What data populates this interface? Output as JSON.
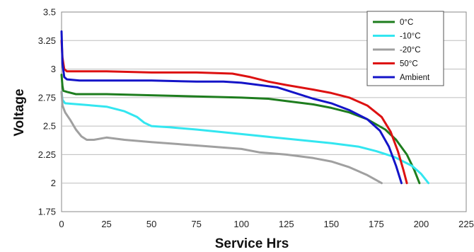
{
  "chart_data": {
    "type": "line",
    "title": "",
    "xlabel": "Service Hrs",
    "ylabel": "Voltage",
    "xlim": [
      0,
      225
    ],
    "ylim": [
      1.75,
      3.5
    ],
    "x_ticks": [
      0,
      25,
      50,
      75,
      100,
      125,
      150,
      175,
      200,
      225
    ],
    "y_ticks": [
      1.75,
      2,
      2.25,
      2.5,
      2.75,
      3,
      3.25,
      3.5
    ],
    "x_tick_labels": [
      "0",
      "25",
      "50",
      "75",
      "100",
      "125",
      "150",
      "175",
      "200",
      "225"
    ],
    "y_tick_labels": [
      "1.75",
      "2",
      "2.25",
      "2.5",
      "2.75",
      "3",
      "3.25",
      "3.5"
    ],
    "grid": "horizontal",
    "legend_position": "top-right",
    "series": [
      {
        "name": "0°C",
        "color": "#1e7d1e",
        "points": [
          [
            0,
            2.95
          ],
          [
            0.5,
            2.85
          ],
          [
            1,
            2.81
          ],
          [
            3,
            2.8
          ],
          [
            8,
            2.78
          ],
          [
            25,
            2.78
          ],
          [
            50,
            2.77
          ],
          [
            75,
            2.76
          ],
          [
            100,
            2.75
          ],
          [
            115,
            2.74
          ],
          [
            125,
            2.72
          ],
          [
            140,
            2.69
          ],
          [
            150,
            2.66
          ],
          [
            160,
            2.62
          ],
          [
            170,
            2.56
          ],
          [
            180,
            2.47
          ],
          [
            186,
            2.38
          ],
          [
            192,
            2.25
          ],
          [
            196,
            2.12
          ],
          [
            199,
            2.0
          ]
        ]
      },
      {
        "name": "-10°C",
        "color": "#33e6f0",
        "points": [
          [
            0,
            2.8
          ],
          [
            0.5,
            2.73
          ],
          [
            2,
            2.7
          ],
          [
            10,
            2.69
          ],
          [
            25,
            2.67
          ],
          [
            35,
            2.63
          ],
          [
            42,
            2.58
          ],
          [
            46,
            2.53
          ],
          [
            50,
            2.5
          ],
          [
            60,
            2.49
          ],
          [
            75,
            2.47
          ],
          [
            100,
            2.43
          ],
          [
            125,
            2.39
          ],
          [
            150,
            2.35
          ],
          [
            165,
            2.32
          ],
          [
            175,
            2.28
          ],
          [
            185,
            2.23
          ],
          [
            195,
            2.15
          ],
          [
            200,
            2.08
          ],
          [
            204,
            2.0
          ]
        ]
      },
      {
        "name": "-20°C",
        "color": "#a0a0a0",
        "points": [
          [
            0,
            2.8
          ],
          [
            0.5,
            2.68
          ],
          [
            2,
            2.62
          ],
          [
            5,
            2.55
          ],
          [
            8,
            2.47
          ],
          [
            11,
            2.41
          ],
          [
            14,
            2.38
          ],
          [
            18,
            2.38
          ],
          [
            25,
            2.4
          ],
          [
            35,
            2.38
          ],
          [
            50,
            2.36
          ],
          [
            75,
            2.33
          ],
          [
            100,
            2.3
          ],
          [
            110,
            2.27
          ],
          [
            125,
            2.25
          ],
          [
            140,
            2.22
          ],
          [
            150,
            2.19
          ],
          [
            160,
            2.14
          ],
          [
            170,
            2.07
          ],
          [
            178,
            2.0
          ]
        ]
      },
      {
        "name": "50°C",
        "color": "#dd1111",
        "points": [
          [
            0,
            3.25
          ],
          [
            0.5,
            3.1
          ],
          [
            1.5,
            3.0
          ],
          [
            3,
            2.98
          ],
          [
            10,
            2.98
          ],
          [
            25,
            2.98
          ],
          [
            50,
            2.97
          ],
          [
            75,
            2.97
          ],
          [
            95,
            2.96
          ],
          [
            105,
            2.93
          ],
          [
            115,
            2.89
          ],
          [
            125,
            2.86
          ],
          [
            140,
            2.82
          ],
          [
            150,
            2.79
          ],
          [
            160,
            2.75
          ],
          [
            170,
            2.68
          ],
          [
            178,
            2.58
          ],
          [
            183,
            2.45
          ],
          [
            187,
            2.28
          ],
          [
            190,
            2.12
          ],
          [
            192,
            2.0
          ]
        ]
      },
      {
        "name": "Ambient",
        "color": "#1414c8",
        "points": [
          [
            0,
            3.33
          ],
          [
            0.5,
            3.05
          ],
          [
            1.5,
            2.93
          ],
          [
            3,
            2.91
          ],
          [
            10,
            2.9
          ],
          [
            25,
            2.9
          ],
          [
            50,
            2.9
          ],
          [
            75,
            2.89
          ],
          [
            90,
            2.89
          ],
          [
            100,
            2.88
          ],
          [
            110,
            2.86
          ],
          [
            120,
            2.84
          ],
          [
            130,
            2.79
          ],
          [
            140,
            2.74
          ],
          [
            150,
            2.7
          ],
          [
            160,
            2.64
          ],
          [
            170,
            2.56
          ],
          [
            177,
            2.46
          ],
          [
            182,
            2.32
          ],
          [
            186,
            2.15
          ],
          [
            189,
            2.0
          ]
        ]
      }
    ]
  }
}
